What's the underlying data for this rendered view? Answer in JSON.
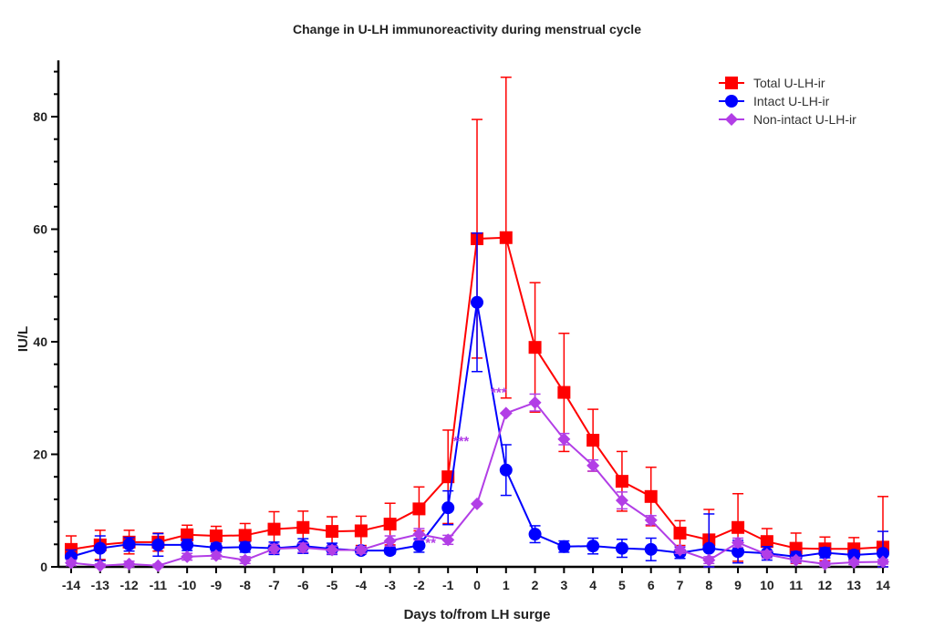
{
  "chart_data": {
    "type": "line",
    "title": "Change in U-LH immunoreactivity during menstrual cycle",
    "xlabel": "Days to/from LH surge",
    "ylabel": "IU/L",
    "x": [
      -14,
      -13,
      -12,
      -11,
      -10,
      -9,
      -8,
      -7,
      -6,
      -5,
      -4,
      -3,
      -2,
      -1,
      0,
      1,
      2,
      3,
      4,
      5,
      6,
      7,
      8,
      9,
      10,
      11,
      12,
      13,
      14
    ],
    "xticks": [
      "-14",
      "-13",
      "-12",
      "-11",
      "-10",
      "-9",
      "-8",
      "-7",
      "-6",
      "-5",
      "-4",
      "-3",
      "-2",
      "-1",
      "0",
      "1",
      "2",
      "3",
      "4",
      "5",
      "6",
      "7",
      "8",
      "9",
      "10",
      "11",
      "12",
      "13",
      "14"
    ],
    "ylim": [
      0,
      90
    ],
    "yticks": [
      "0",
      "20",
      "40",
      "60",
      "80"
    ],
    "yticks_values": [
      0,
      20,
      40,
      60,
      80
    ],
    "grid": false,
    "legend_position": "top-right",
    "series": [
      {
        "name": "Total U-LH-ir",
        "color": "#ff0000",
        "marker": "square",
        "values": [
          3.1,
          3.9,
          4.4,
          4.4,
          5.7,
          5.5,
          5.6,
          6.7,
          7.0,
          6.3,
          6.4,
          7.6,
          10.3,
          16.0,
          58.3,
          58.5,
          39.0,
          31.0,
          22.5,
          15.2,
          12.5,
          6.0,
          4.8,
          7.0,
          4.5,
          3.3,
          3.2,
          3.2,
          3.5
        ],
        "error": [
          2.4,
          2.6,
          2.1,
          1.6,
          1.7,
          1.7,
          2.1,
          3.1,
          2.9,
          2.6,
          2.6,
          3.7,
          3.9,
          8.3,
          21.2,
          28.5,
          11.5,
          10.5,
          5.5,
          5.3,
          5.2,
          2.2,
          5.4,
          6.0,
          2.3,
          2.7,
          2.1,
          2.0,
          9.0
        ]
      },
      {
        "name": "Intact U-LH-ir",
        "color": "#0000ff",
        "marker": "circle",
        "values": [
          1.8,
          3.3,
          4.0,
          3.9,
          3.9,
          3.4,
          3.5,
          3.3,
          3.7,
          3.2,
          2.9,
          2.9,
          3.8,
          10.5,
          47.0,
          17.2,
          5.8,
          3.6,
          3.7,
          3.3,
          3.1,
          2.5,
          3.3,
          2.7,
          2.4,
          1.8,
          2.5,
          2.1,
          2.4
        ],
        "error": [
          1.2,
          2.2,
          1.2,
          2.0,
          1.0,
          0.8,
          0.9,
          1.1,
          1.3,
          1.0,
          0.6,
          0.6,
          1.2,
          3.0,
          12.3,
          4.5,
          1.5,
          1.0,
          1.4,
          1.6,
          2.0,
          1.0,
          6.1,
          2.0,
          1.2,
          0.9,
          0.9,
          0.8,
          3.9
        ]
      },
      {
        "name": "Non-intact U-LH-ir",
        "color": "#b23ee6",
        "marker": "diamond",
        "values": [
          0.7,
          0.2,
          0.5,
          0.2,
          1.8,
          2.0,
          1.2,
          3.2,
          3.4,
          3.0,
          3.0,
          4.6,
          5.8,
          4.8,
          11.2,
          27.3,
          29.2,
          22.7,
          18.0,
          11.8,
          8.3,
          3.0,
          1.2,
          4.3,
          2.2,
          1.2,
          0.5,
          0.8,
          0.9
        ],
        "error": [
          0.5,
          0.3,
          0.5,
          0.3,
          0.6,
          0.6,
          0.6,
          0.8,
          0.8,
          0.7,
          0.6,
          0.9,
          1.0,
          0.8,
          0.0,
          0.0,
          1.5,
          1.0,
          1.0,
          1.5,
          0.8,
          0.6,
          0.6,
          0.8,
          0.6,
          0.5,
          0.4,
          0.4,
          0.4
        ]
      }
    ],
    "annotations": [
      {
        "text": "**",
        "x": -1.6,
        "y": 3.5,
        "color": "#b23ee6"
      },
      {
        "text": "***",
        "x": -0.55,
        "y": 21.5,
        "color": "#b23ee6"
      },
      {
        "text": "***",
        "x": 0.75,
        "y": 30.2,
        "color": "#b23ee6"
      }
    ]
  }
}
